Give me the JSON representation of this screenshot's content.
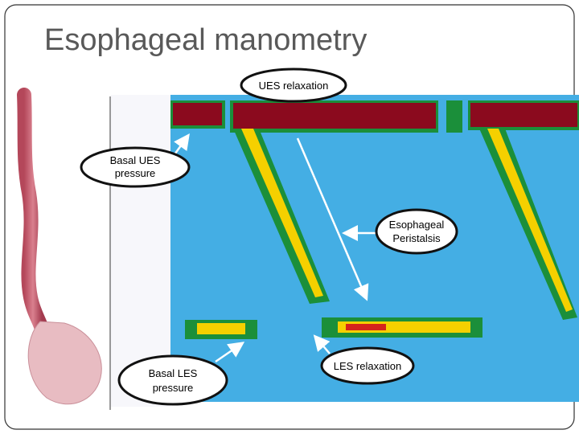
{
  "header": {
    "title": "Esophageal manometry"
  },
  "callouts": {
    "ues_relaxation": {
      "lines": [
        "UES relaxation"
      ]
    },
    "basal_ues": {
      "lines": [
        "Basal UES",
        "pressure"
      ]
    },
    "peristalsis": {
      "lines": [
        "Esophageal",
        "Peristalsis"
      ]
    },
    "basal_les": {
      "lines": [
        "Basal LES",
        "pressure"
      ]
    },
    "les_relaxation": {
      "lines": [
        "LES relaxation"
      ]
    }
  }
}
